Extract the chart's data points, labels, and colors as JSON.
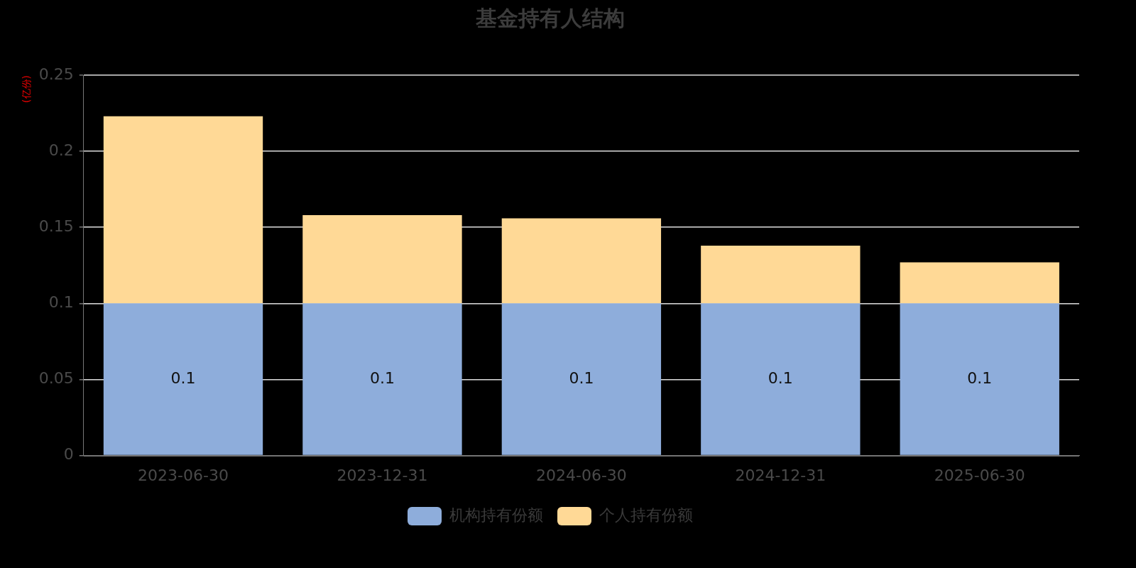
{
  "chart_data": {
    "type": "bar",
    "title": "基金持有人结构",
    "ylabel": "(亿份)",
    "categories": [
      "2023-06-30",
      "2023-12-31",
      "2024-06-30",
      "2024-12-31",
      "2025-06-30"
    ],
    "stacked": true,
    "series": [
      {
        "name": "机构持有份额",
        "color": "#8eaddb",
        "values": [
          0.1,
          0.1,
          0.1,
          0.1,
          0.1
        ],
        "value_labels": [
          "0.1",
          "0.1",
          "0.1",
          "0.1",
          "0.1"
        ]
      },
      {
        "name": "个人持有份额",
        "color": "#ffd996",
        "values": [
          0.123,
          0.058,
          0.056,
          0.038,
          0.027
        ]
      }
    ],
    "ylim": [
      0,
      0.25
    ],
    "yticks": [
      0,
      0.05,
      0.1,
      0.15,
      0.2,
      0.25
    ],
    "grid": "y",
    "legend": "bottom"
  }
}
